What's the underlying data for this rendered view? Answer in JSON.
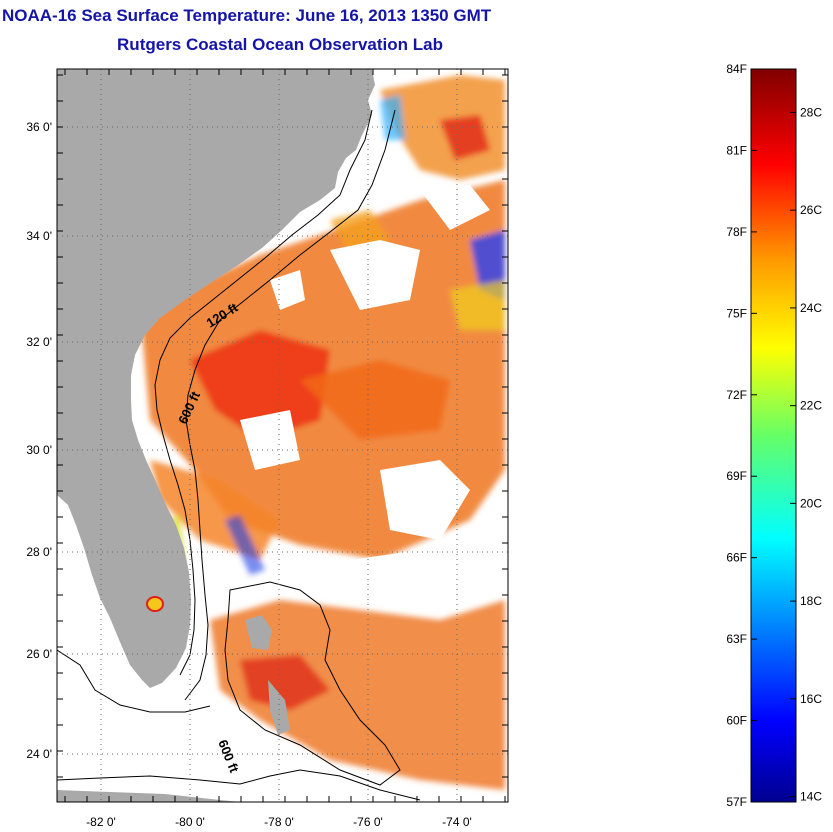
{
  "title": {
    "line1": "NOAA-16 Sea Surface Temperature:  June 16, 2013 1350 GMT",
    "line2": "Rutgers Coastal Ocean Observation Lab"
  },
  "map": {
    "lat_range": [
      23.1,
      37.1
    ],
    "lon_range": [
      -83.1,
      -72.9
    ],
    "lat_ticks": [
      {
        "value": 24,
        "label": "24 0'"
      },
      {
        "value": 26,
        "label": "26 0'"
      },
      {
        "value": 28,
        "label": "28 0'"
      },
      {
        "value": 30,
        "label": "30 0'"
      },
      {
        "value": 32,
        "label": "32 0'"
      },
      {
        "value": 34,
        "label": "34 0'"
      },
      {
        "value": 36,
        "label": "36 0'"
      }
    ],
    "lon_ticks": [
      {
        "value": -82,
        "label": "-82 0'"
      },
      {
        "value": -80,
        "label": "-80 0'"
      },
      {
        "value": -78,
        "label": "-78 0'"
      },
      {
        "value": -76,
        "label": "-76 0'"
      },
      {
        "value": -74,
        "label": "-74 0'"
      }
    ],
    "land_color": "#a9a9a9",
    "contour_labels": [
      "120 ft",
      "600 ft",
      "600 ft"
    ]
  },
  "colorbar": {
    "range_f": [
      57,
      84
    ],
    "fahrenheit_labels": [
      "84F",
      "81F",
      "78F",
      "75F",
      "72F",
      "69F",
      "66F",
      "63F",
      "60F",
      "57F"
    ],
    "celsius_labels": [
      "28C",
      "26C",
      "24C",
      "22C",
      "20C",
      "18C",
      "16C",
      "14C"
    ],
    "colormap": "jet"
  }
}
